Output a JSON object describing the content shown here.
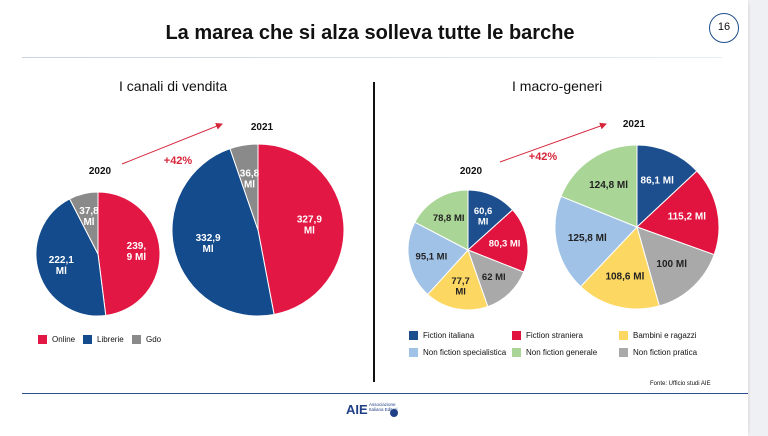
{
  "slide": {
    "title": "La marea che si alza solleva tutte le barche",
    "page_number": "16"
  },
  "footer": {
    "source": "Fonte: Ufficio studi AIE",
    "logo_mark": "AIE",
    "logo_text": "Associazione Italiana Editori"
  },
  "colors": {
    "online": "#e31743",
    "librerie": "#134b8c",
    "gdo": "#8a8a8a",
    "fiction_italiana": "#1d4f8f",
    "fiction_straniera": "#e0143e",
    "bambini": "#fcd762",
    "non_fiction_specialistica": "#9fc2e6",
    "non_fiction_generale": "#a9d596",
    "non_fiction_pratica": "#a9a9a9",
    "arrow": "#d6263a"
  },
  "chart_data": [
    {
      "type": "pie",
      "title": "I canali di vendita",
      "growth_label": "+42%",
      "legend": [
        "Online",
        "Librerie",
        "Gdo"
      ],
      "pies": [
        {
          "year": "2020",
          "slices": [
            {
              "name": "Online",
              "value": 239.9,
              "label": "239,\n9 Ml"
            },
            {
              "name": "Librerie",
              "value": 222.1,
              "label": "222,1\nMl"
            },
            {
              "name": "Gdo",
              "value": 37.8,
              "label": "37,8\nMl"
            }
          ]
        },
        {
          "year": "2021",
          "slices": [
            {
              "name": "Online",
              "value": 327.9,
              "label": "327,9\nMl"
            },
            {
              "name": "Librerie",
              "value": 332.9,
              "label": "332,9\nMl"
            },
            {
              "name": "Gdo",
              "value": 36.8,
              "label": "36,8\nMl"
            }
          ]
        }
      ]
    },
    {
      "type": "pie",
      "title": "I macro-generi",
      "growth_label": "+42%",
      "legend": [
        "Fiction italiana",
        "Fiction straniera",
        "Bambini e ragazzi",
        "Non fiction specialistica",
        "Non fiction generale",
        "Non fiction pratica"
      ],
      "pies": [
        {
          "year": "2020",
          "slices": [
            {
              "name": "Fiction italiana",
              "value": 60.6,
              "label": "60,6\nMl"
            },
            {
              "name": "Fiction straniera",
              "value": 80.3,
              "label": "80,3 Ml"
            },
            {
              "name": "Non fiction pratica",
              "value": 62,
              "label": "62 Ml"
            },
            {
              "name": "Bambini e ragazzi",
              "value": 77.7,
              "label": "77,7\nMl"
            },
            {
              "name": "Non fiction specialistica",
              "value": 95.1,
              "label": "95,1 Ml"
            },
            {
              "name": "Non fiction generale",
              "value": 78.8,
              "label": "78,8 Ml"
            }
          ]
        },
        {
          "year": "2021",
          "slices": [
            {
              "name": "Fiction italiana",
              "value": 86.1,
              "label": "86,1 Ml"
            },
            {
              "name": "Fiction straniera",
              "value": 115.2,
              "label": "115,2 Ml"
            },
            {
              "name": "Non fiction pratica",
              "value": 100,
              "label": "100 Ml"
            },
            {
              "name": "Bambini e ragazzi",
              "value": 108.6,
              "label": "108,6 Ml"
            },
            {
              "name": "Non fiction specialistica",
              "value": 125.8,
              "label": "125,8 Ml"
            },
            {
              "name": "Non fiction generale",
              "value": 124.8,
              "label": "124,8 Ml"
            }
          ]
        }
      ]
    }
  ]
}
